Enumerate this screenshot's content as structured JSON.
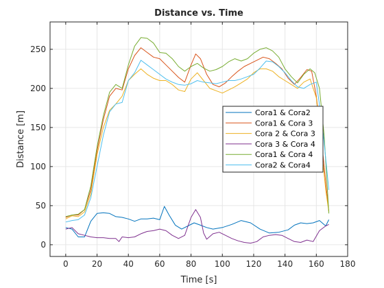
{
  "colors": {
    "background": "#ffffff",
    "grid": "#e6e6e6",
    "axis": "#262626",
    "series": [
      "#0072BD",
      "#D95319",
      "#EDB120",
      "#7E2F8E",
      "#77AC30",
      "#4DBEEE"
    ]
  },
  "chart_data": {
    "type": "line",
    "title": "Distance vs. Time",
    "xlabel": "Time [s]",
    "ylabel": "Distance [m]",
    "xlim": [
      -10,
      180
    ],
    "ylim": [
      -15,
      285
    ],
    "xticks": [
      0,
      20,
      40,
      60,
      80,
      100,
      120,
      140,
      160,
      180
    ],
    "yticks": [
      0,
      50,
      100,
      150,
      200,
      250
    ],
    "xtick_labels": [
      "0",
      "20",
      "40",
      "60",
      "80",
      "100",
      "120",
      "140",
      "160",
      "180"
    ],
    "ytick_labels": [
      "0",
      "50",
      "100",
      "150",
      "200",
      "250"
    ],
    "grid": true,
    "legend_position": "right",
    "series": [
      {
        "name": "Cora1 & Cora2",
        "x": [
          0,
          4,
          8,
          12,
          16,
          20,
          24,
          28,
          32,
          36,
          40,
          44,
          48,
          52,
          56,
          60,
          63,
          66,
          70,
          74,
          78,
          82,
          86,
          90,
          94,
          100,
          106,
          112,
          118,
          124,
          130,
          136,
          142,
          146,
          150,
          154,
          158,
          162,
          166,
          168
        ],
        "y": [
          22,
          20,
          10,
          10,
          30,
          40,
          41,
          40,
          36,
          35,
          33,
          30,
          33,
          33,
          34,
          32,
          49,
          38,
          25,
          20,
          24,
          28,
          25,
          22,
          20,
          22,
          26,
          31,
          28,
          20,
          15,
          16,
          19,
          25,
          28,
          27,
          28,
          31,
          24,
          32
        ]
      },
      {
        "name": "Cora1 & Cora 3",
        "x": [
          0,
          4,
          8,
          12,
          16,
          20,
          24,
          28,
          32,
          36,
          40,
          44,
          48,
          52,
          56,
          60,
          64,
          68,
          72,
          76,
          80,
          83,
          86,
          90,
          94,
          98,
          102,
          106,
          110,
          114,
          118,
          122,
          126,
          130,
          134,
          138,
          142,
          146,
          150,
          154,
          157,
          160,
          163,
          166,
          168
        ],
        "y": [
          35,
          38,
          38,
          45,
          70,
          120,
          160,
          190,
          200,
          198,
          225,
          242,
          252,
          246,
          240,
          238,
          230,
          222,
          214,
          208,
          230,
          244,
          238,
          218,
          205,
          202,
          207,
          215,
          222,
          228,
          232,
          236,
          240,
          238,
          232,
          225,
          213,
          205,
          214,
          224,
          222,
          190,
          140,
          80,
          42
        ]
      },
      {
        "name": "Cora 2 & Cora 3",
        "x": [
          0,
          4,
          8,
          12,
          16,
          20,
          24,
          28,
          32,
          36,
          40,
          44,
          48,
          52,
          56,
          60,
          64,
          68,
          72,
          76,
          80,
          84,
          88,
          92,
          96,
          100,
          104,
          108,
          112,
          116,
          120,
          124,
          128,
          132,
          136,
          140,
          144,
          148,
          152,
          156,
          160,
          163,
          166,
          168
        ],
        "y": [
          33,
          37,
          36,
          42,
          65,
          115,
          150,
          172,
          180,
          190,
          210,
          218,
          225,
          218,
          213,
          210,
          210,
          205,
          198,
          196,
          212,
          220,
          210,
          200,
          197,
          194,
          198,
          202,
          207,
          212,
          220,
          225,
          225,
          222,
          215,
          210,
          205,
          200,
          208,
          212,
          188,
          130,
          70,
          42
        ]
      },
      {
        "name": "Cora 3 & Cora 4",
        "x": [
          0,
          4,
          8,
          12,
          16,
          20,
          24,
          28,
          32,
          34,
          36,
          40,
          44,
          48,
          52,
          56,
          60,
          64,
          68,
          72,
          76,
          80,
          83,
          86,
          88,
          90,
          94,
          98,
          102,
          106,
          110,
          114,
          118,
          122,
          126,
          130,
          134,
          138,
          142,
          146,
          150,
          154,
          158,
          162,
          166,
          168
        ],
        "y": [
          20,
          22,
          14,
          12,
          10,
          9,
          9,
          8,
          8,
          4,
          10,
          9,
          10,
          14,
          17,
          18,
          20,
          18,
          12,
          8,
          12,
          35,
          45,
          35,
          15,
          7,
          14,
          16,
          12,
          8,
          5,
          3,
          2,
          4,
          10,
          12,
          13,
          12,
          8,
          4,
          3,
          6,
          4,
          18,
          24,
          26
        ]
      },
      {
        "name": "Cora1 & Cora 4",
        "x": [
          0,
          4,
          8,
          12,
          16,
          20,
          24,
          28,
          32,
          36,
          40,
          44,
          48,
          52,
          56,
          60,
          64,
          68,
          72,
          76,
          80,
          84,
          88,
          92,
          96,
          100,
          104,
          108,
          112,
          116,
          120,
          124,
          128,
          132,
          136,
          140,
          144,
          148,
          152,
          156,
          159,
          162,
          165,
          168
        ],
        "y": [
          36,
          38,
          39,
          45,
          75,
          125,
          165,
          195,
          205,
          200,
          230,
          254,
          265,
          264,
          258,
          246,
          245,
          238,
          228,
          222,
          228,
          232,
          226,
          222,
          224,
          228,
          234,
          238,
          235,
          238,
          245,
          250,
          252,
          248,
          240,
          225,
          215,
          207,
          218,
          225,
          220,
          200,
          140,
          40
        ]
      },
      {
        "name": "Cora2 & Cora4",
        "x": [
          0,
          4,
          8,
          12,
          16,
          20,
          24,
          28,
          32,
          36,
          40,
          44,
          48,
          52,
          56,
          60,
          64,
          68,
          72,
          76,
          80,
          84,
          88,
          92,
          96,
          100,
          104,
          108,
          112,
          116,
          120,
          124,
          128,
          132,
          136,
          140,
          144,
          148,
          152,
          156,
          160,
          164,
          168
        ],
        "y": [
          29,
          31,
          32,
          38,
          60,
          100,
          140,
          170,
          180,
          182,
          210,
          220,
          236,
          230,
          224,
          218,
          212,
          208,
          205,
          204,
          206,
          210,
          208,
          207,
          206,
          208,
          210,
          210,
          212,
          215,
          218,
          226,
          235,
          234,
          228,
          220,
          210,
          202,
          200,
          205,
          208,
          150,
          70
        ]
      }
    ]
  }
}
